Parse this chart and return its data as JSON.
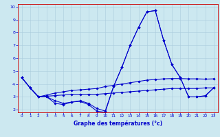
{
  "xlabel": "Graphe des températures (°c)",
  "background_color": "#cce8f0",
  "grid_color": "#aaccdd",
  "line_color": "#0000cc",
  "spine_color": "#cc0000",
  "xlim": [
    -0.5,
    23.5
  ],
  "ylim": [
    1.8,
    10.2
  ],
  "yticks": [
    2,
    3,
    4,
    5,
    6,
    7,
    8,
    9,
    10
  ],
  "xticks": [
    0,
    1,
    2,
    3,
    4,
    5,
    6,
    7,
    8,
    9,
    10,
    11,
    12,
    13,
    14,
    15,
    16,
    17,
    18,
    19,
    20,
    21,
    22,
    23
  ],
  "series": [
    [
      4.5,
      3.7,
      3.0,
      3.0,
      2.7,
      2.5,
      2.6,
      2.7,
      2.5,
      2.1,
      1.9,
      3.8,
      5.3,
      7.0,
      8.4,
      9.6,
      9.7,
      7.4,
      5.5,
      4.5,
      3.0,
      3.0,
      3.1,
      3.7
    ],
    [
      4.5,
      3.7,
      3.0,
      3.0,
      2.5,
      2.4,
      2.6,
      2.65,
      2.4,
      1.9,
      1.8,
      3.8,
      5.3,
      7.0,
      8.4,
      9.6,
      9.7,
      7.4,
      5.5,
      4.5,
      3.0,
      3.0,
      3.05,
      3.7
    ],
    [
      4.5,
      3.7,
      3.0,
      3.05,
      3.1,
      3.15,
      3.2,
      3.2,
      3.2,
      3.2,
      3.25,
      3.3,
      3.35,
      3.4,
      3.45,
      3.5,
      3.55,
      3.6,
      3.65,
      3.65,
      3.65,
      3.65,
      3.7,
      3.7
    ],
    [
      4.5,
      3.7,
      3.0,
      3.15,
      3.3,
      3.4,
      3.5,
      3.55,
      3.6,
      3.65,
      3.8,
      3.9,
      4.0,
      4.1,
      4.2,
      4.3,
      4.35,
      4.4,
      4.42,
      4.42,
      4.4,
      4.4,
      4.38,
      4.4
    ]
  ]
}
